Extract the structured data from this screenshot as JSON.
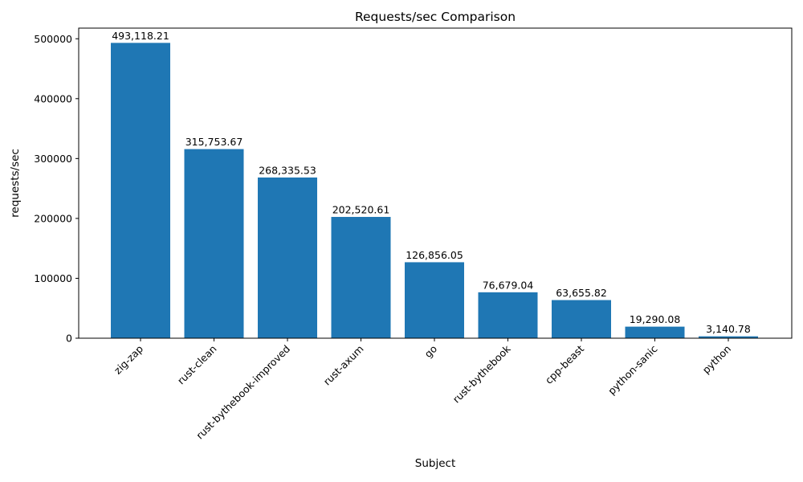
{
  "chart_data": {
    "type": "bar",
    "title": "Requests/sec Comparison",
    "xlabel": "Subject",
    "ylabel": "requests/sec",
    "categories": [
      "zig-zap",
      "rust-clean",
      "rust-bythebook-improved",
      "rust-axum",
      "go",
      "rust-bythebook",
      "cpp-beast",
      "python-sanic",
      "python"
    ],
    "values": [
      493118.21,
      315753.67,
      268335.53,
      202520.61,
      126856.05,
      76679.04,
      63655.82,
      19290.08,
      3140.78
    ],
    "value_labels": [
      "493,118.21",
      "315,753.67",
      "268,335.53",
      "202,520.61",
      "126,856.05",
      "76,679.04",
      "63,655.82",
      "19,290.08",
      "3,140.78"
    ],
    "y_ticks": [
      0,
      100000,
      200000,
      300000,
      400000,
      500000
    ],
    "y_tick_labels": [
      "0",
      "100000",
      "200000",
      "300000",
      "400000",
      "500000"
    ],
    "ylim": [
      0,
      517774
    ],
    "bar_color": "#1f77b4",
    "axis_color": "#000000",
    "grid": false,
    "legend_position": "none"
  }
}
